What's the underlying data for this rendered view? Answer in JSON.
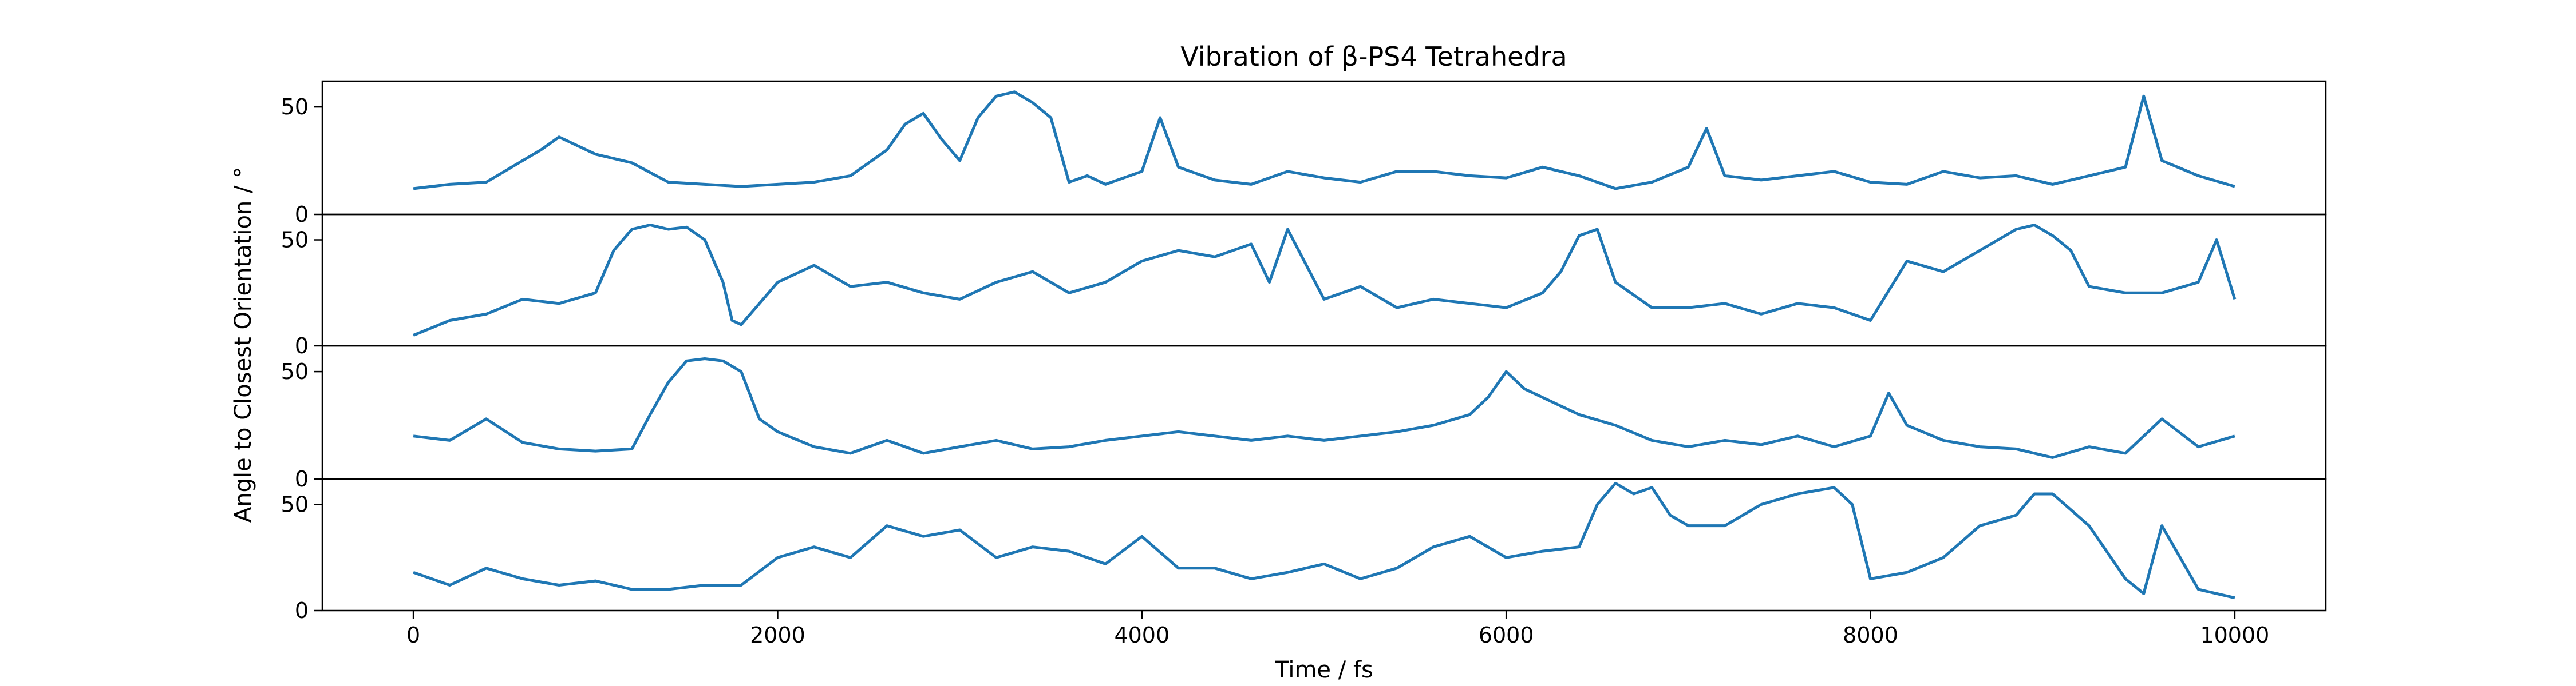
{
  "chart_data": {
    "type": "line",
    "title": "Vibration of β-PS4 Tetrahedra",
    "xlabel": "Time / fs",
    "ylabel": "Angle to Closest Orientation / °",
    "x_range": [
      0,
      10000
    ],
    "xlim": [
      -500,
      10500
    ],
    "ylim": [
      0,
      62
    ],
    "x_ticks": [
      "0",
      "2000",
      "4000",
      "6000",
      "8000",
      "10000"
    ],
    "y_ticks": [
      "0",
      "50"
    ],
    "line_color": "#1f77b4",
    "grid": false,
    "legend": "none",
    "panels": [
      {
        "x": [
          0,
          200,
          400,
          600,
          700,
          800,
          1000,
          1200,
          1400,
          1600,
          1800,
          2000,
          2200,
          2400,
          2600,
          2700,
          2800,
          2900,
          3000,
          3100,
          3200,
          3300,
          3400,
          3500,
          3600,
          3700,
          3800,
          4000,
          4100,
          4200,
          4400,
          4600,
          4800,
          5000,
          5200,
          5400,
          5600,
          5800,
          6000,
          6200,
          6400,
          6600,
          6800,
          7000,
          7100,
          7200,
          7400,
          7600,
          7800,
          8000,
          8200,
          8400,
          8600,
          8800,
          9000,
          9200,
          9400,
          9500,
          9600,
          9800,
          10000
        ],
        "values": [
          12,
          14,
          15,
          25,
          30,
          36,
          28,
          24,
          15,
          14,
          13,
          14,
          15,
          18,
          30,
          42,
          47,
          35,
          25,
          45,
          55,
          57,
          52,
          45,
          15,
          18,
          14,
          20,
          45,
          22,
          16,
          14,
          20,
          17,
          15,
          20,
          20,
          18,
          17,
          22,
          18,
          12,
          15,
          22,
          40,
          18,
          16,
          18,
          20,
          15,
          14,
          20,
          17,
          18,
          14,
          18,
          22,
          55,
          25,
          18,
          13
        ]
      },
      {
        "x": [
          0,
          200,
          400,
          600,
          800,
          1000,
          1100,
          1200,
          1300,
          1400,
          1500,
          1600,
          1700,
          1750,
          1800,
          2000,
          2200,
          2400,
          2600,
          2800,
          3000,
          3200,
          3400,
          3600,
          3800,
          4000,
          4200,
          4400,
          4600,
          4700,
          4800,
          5000,
          5200,
          5400,
          5600,
          5800,
          6000,
          6200,
          6300,
          6400,
          6500,
          6600,
          6800,
          7000,
          7200,
          7400,
          7600,
          7800,
          8000,
          8200,
          8400,
          8600,
          8800,
          8900,
          9000,
          9100,
          9200,
          9400,
          9600,
          9800,
          9900,
          10000
        ],
        "values": [
          5,
          12,
          15,
          22,
          20,
          25,
          45,
          55,
          57,
          55,
          56,
          50,
          30,
          12,
          10,
          30,
          38,
          28,
          30,
          25,
          22,
          30,
          35,
          25,
          30,
          40,
          45,
          42,
          48,
          30,
          55,
          22,
          28,
          18,
          22,
          20,
          18,
          25,
          35,
          52,
          55,
          30,
          18,
          18,
          20,
          15,
          20,
          18,
          12,
          40,
          35,
          45,
          55,
          57,
          52,
          45,
          28,
          25,
          25,
          30,
          50,
          22
        ]
      },
      {
        "x": [
          0,
          200,
          400,
          600,
          800,
          1000,
          1200,
          1300,
          1400,
          1500,
          1600,
          1700,
          1800,
          1900,
          2000,
          2200,
          2400,
          2600,
          2800,
          3000,
          3200,
          3400,
          3600,
          3800,
          4000,
          4200,
          4400,
          4600,
          4800,
          5000,
          5200,
          5400,
          5600,
          5800,
          5900,
          6000,
          6100,
          6200,
          6400,
          6600,
          6800,
          7000,
          7200,
          7400,
          7600,
          7800,
          8000,
          8100,
          8200,
          8400,
          8600,
          8800,
          9000,
          9200,
          9400,
          9600,
          9800,
          10000
        ],
        "values": [
          20,
          18,
          28,
          17,
          14,
          13,
          14,
          30,
          45,
          55,
          56,
          55,
          50,
          28,
          22,
          15,
          12,
          18,
          12,
          15,
          18,
          14,
          15,
          18,
          20,
          22,
          20,
          18,
          20,
          18,
          20,
          22,
          25,
          30,
          38,
          50,
          42,
          38,
          30,
          25,
          18,
          15,
          18,
          16,
          20,
          15,
          20,
          40,
          25,
          18,
          15,
          14,
          10,
          15,
          12,
          28,
          15,
          20
        ]
      },
      {
        "x": [
          0,
          200,
          400,
          600,
          800,
          1000,
          1200,
          1400,
          1600,
          1800,
          2000,
          2200,
          2400,
          2600,
          2800,
          3000,
          3200,
          3400,
          3600,
          3800,
          4000,
          4200,
          4400,
          4600,
          4800,
          5000,
          5200,
          5400,
          5600,
          5800,
          6000,
          6200,
          6400,
          6500,
          6600,
          6700,
          6800,
          6900,
          7000,
          7200,
          7400,
          7600,
          7800,
          7900,
          8000,
          8200,
          8400,
          8600,
          8800,
          8900,
          9000,
          9200,
          9400,
          9500,
          9600,
          9800,
          10000
        ],
        "values": [
          18,
          12,
          20,
          15,
          12,
          14,
          10,
          10,
          12,
          12,
          25,
          30,
          25,
          40,
          35,
          38,
          25,
          30,
          28,
          22,
          35,
          20,
          20,
          15,
          18,
          22,
          15,
          20,
          30,
          35,
          25,
          28,
          30,
          50,
          60,
          55,
          58,
          45,
          40,
          40,
          50,
          55,
          58,
          50,
          15,
          18,
          25,
          40,
          45,
          55,
          55,
          40,
          15,
          8,
          40,
          10,
          6
        ]
      }
    ]
  }
}
